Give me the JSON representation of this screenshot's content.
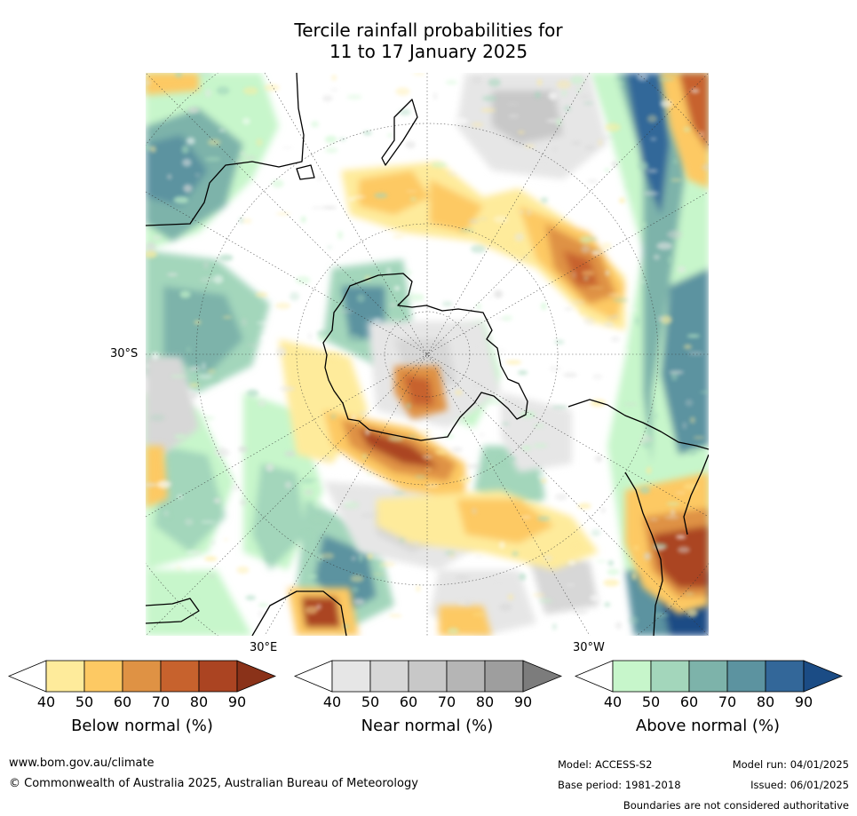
{
  "title": {
    "line1": "Tercile rainfall probabilities for",
    "line2": "11 to 17 January 2025"
  },
  "map": {
    "projection": "south-polar-stereographic",
    "lat_label": "30°S",
    "lon_labels": [
      "30°E",
      "30°W"
    ]
  },
  "colorbars": [
    {
      "name": "below-normal",
      "label": "Below normal (%)",
      "ticks": [
        "40",
        "50",
        "60",
        "70",
        "80",
        "90"
      ],
      "colors": [
        "#ffffff",
        "#feeb9b",
        "#fdc963",
        "#df9244",
        "#c7622d",
        "#ab4422",
        "#8a3219"
      ]
    },
    {
      "name": "near-normal",
      "label": "Near normal (%)",
      "ticks": [
        "40",
        "50",
        "60",
        "70",
        "80",
        "90"
      ],
      "colors": [
        "#ffffff",
        "#e6e6e6",
        "#d7d7d7",
        "#c8c8c8",
        "#b5b5b5",
        "#9e9e9e",
        "#7c7c7c"
      ]
    },
    {
      "name": "above-normal",
      "label": "Above normal (%)",
      "ticks": [
        "40",
        "50",
        "60",
        "70",
        "80",
        "90"
      ],
      "colors": [
        "#ffffff",
        "#c7f6cb",
        "#a3d6bb",
        "#7db3aa",
        "#5c93a0",
        "#336799",
        "#1b4c85"
      ]
    }
  ],
  "footer": {
    "website": "www.bom.gov.au/climate",
    "copyright": "© Commonwealth of Australia 2025, Australian Bureau of Meteorology",
    "model": "Model: ACCESS-S2",
    "model_run": "Model run: 04/01/2025",
    "base_period": "Base period: 1981-2018",
    "issued": "Issued: 06/01/2025",
    "disclaimer": "Boundaries are not considered authoritative"
  }
}
